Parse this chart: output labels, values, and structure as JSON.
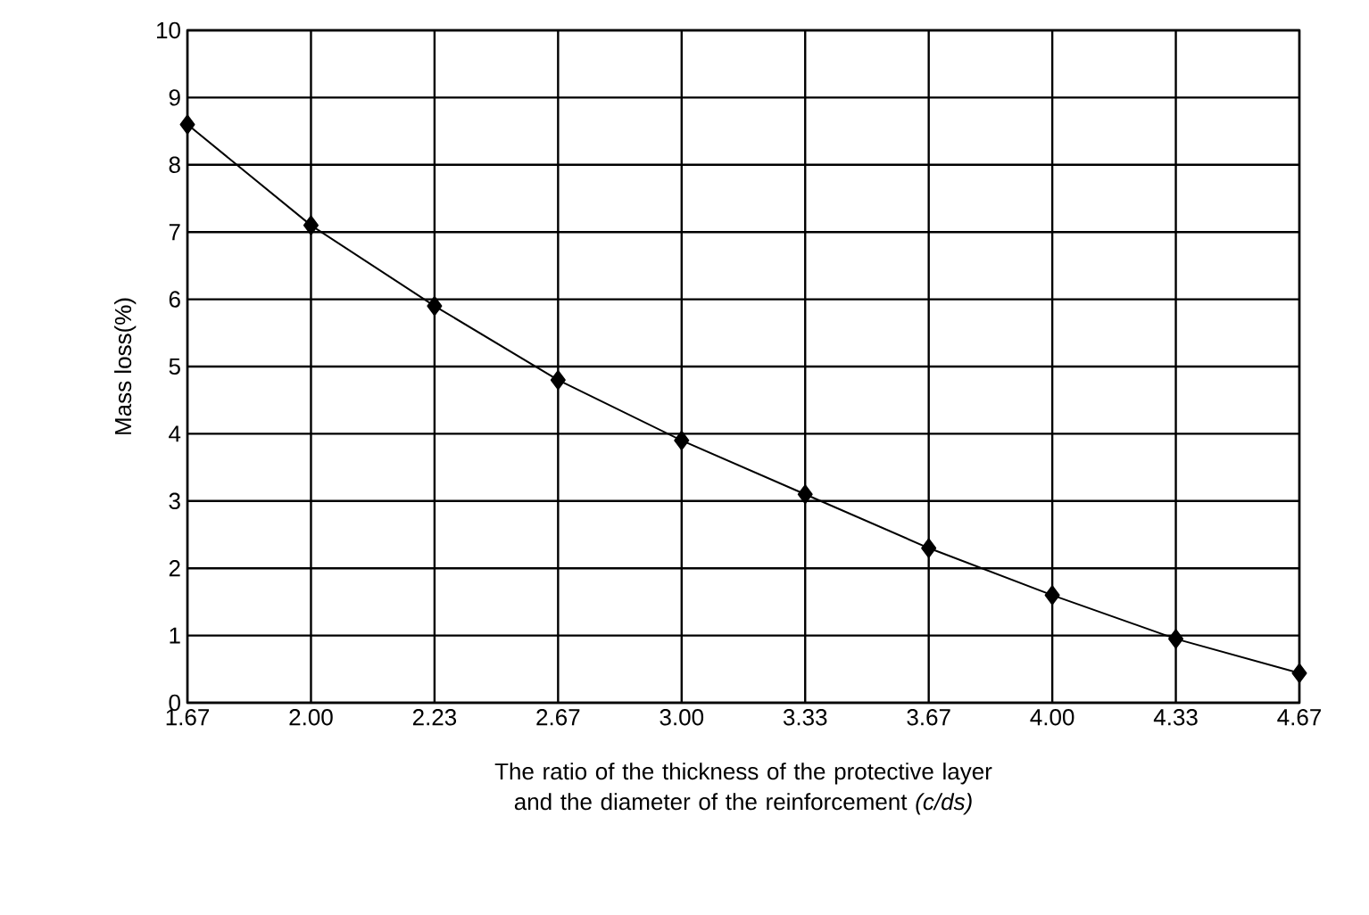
{
  "chart_data": {
    "type": "line",
    "xlabel": "The ratio of the thickness of the protective layer and the diameter of the reinforcement *(c/ds)*",
    "ylabel": "Mass loss(%)",
    "categories": [
      "1.67",
      "2.00",
      "2.23",
      "2.67",
      "3.00",
      "3.33",
      "3.67",
      "4.00",
      "4.33",
      "4.67"
    ],
    "series": [
      {
        "color": "#000000",
        "values": [
          8.6,
          7.1,
          5.9,
          4.8,
          3.9,
          3.1,
          2.3,
          1.6,
          0.95,
          0.44
        ]
      }
    ],
    "ylim": [
      0,
      10
    ],
    "yticks": [
      0,
      1,
      2,
      3,
      4,
      5,
      6,
      7,
      8,
      9,
      10
    ],
    "grid": true,
    "marker": "diamond",
    "line_style": "solid"
  }
}
